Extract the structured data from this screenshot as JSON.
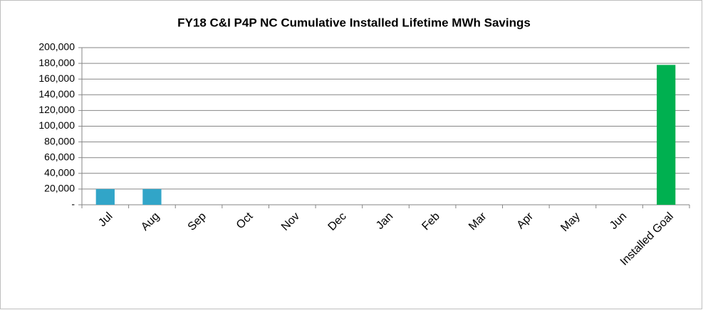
{
  "chart_data": {
    "type": "bar",
    "title": "FY18 C&I P4P NC Cumulative Installed Lifetime MWh Savings",
    "categories": [
      "Jul",
      "Aug",
      "Sep",
      "Oct",
      "Nov",
      "Dec",
      "Jan",
      "Feb",
      "Mar",
      "Apr",
      "May",
      "Jun",
      "Installed Goal"
    ],
    "values": [
      20000,
      20000,
      null,
      null,
      null,
      null,
      null,
      null,
      null,
      null,
      null,
      null,
      178000
    ],
    "colors": [
      "#31a5c8",
      "#31a5c8",
      "#31a5c8",
      "#31a5c8",
      "#31a5c8",
      "#31a5c8",
      "#31a5c8",
      "#31a5c8",
      "#31a5c8",
      "#31a5c8",
      "#31a5c8",
      "#31a5c8",
      "#00b050"
    ],
    "ylim": [
      0,
      200000
    ],
    "yticks": [
      {
        "value": 0,
        "label": "-"
      },
      {
        "value": 20000,
        "label": "20,000"
      },
      {
        "value": 40000,
        "label": "40,000"
      },
      {
        "value": 60000,
        "label": "60,000"
      },
      {
        "value": 80000,
        "label": "80,000"
      },
      {
        "value": 100000,
        "label": "100,000"
      },
      {
        "value": 120000,
        "label": "120,000"
      },
      {
        "value": 140000,
        "label": "140,000"
      },
      {
        "value": 160000,
        "label": "160,000"
      },
      {
        "value": 180000,
        "label": "180,000"
      },
      {
        "value": 200000,
        "label": "200,000"
      }
    ],
    "grid": true
  }
}
